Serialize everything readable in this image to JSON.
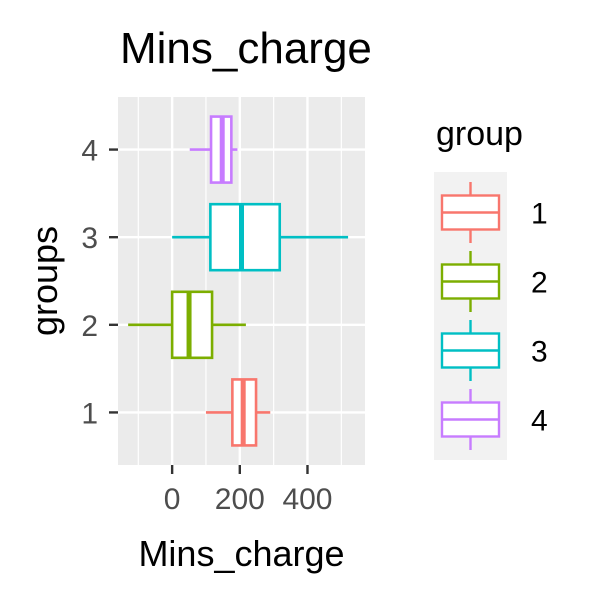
{
  "chart_data": {
    "type": "boxplot",
    "orientation": "horizontal",
    "title": "Mins_charge",
    "xlabel": "Mins_charge",
    "ylabel": "groups",
    "xlim": [
      -160,
      570
    ],
    "x_ticks": [
      0,
      200,
      400
    ],
    "x_tick_labels": [
      "0",
      "200",
      "400"
    ],
    "categories": [
      "1",
      "2",
      "3",
      "4"
    ],
    "series": [
      {
        "name": "1",
        "color": "#F8766D",
        "stats": {
          "min": 100,
          "q1": 178,
          "median": 210,
          "q3": 248,
          "max": 290
        }
      },
      {
        "name": "2",
        "color": "#7CAE00",
        "stats": {
          "min": -130,
          "q1": 0,
          "median": 50,
          "q3": 118,
          "max": 218
        }
      },
      {
        "name": "3",
        "color": "#00BFC4",
        "stats": {
          "min": 0,
          "q1": 113,
          "median": 205,
          "q3": 318,
          "max": 520
        }
      },
      {
        "name": "4",
        "color": "#C77CFF",
        "stats": {
          "min": 52,
          "q1": 115,
          "median": 148,
          "q3": 175,
          "max": 193
        }
      }
    ],
    "legend": {
      "title": "group",
      "position": "right",
      "items": [
        "1",
        "2",
        "3",
        "4"
      ]
    },
    "grid": true,
    "panel_background": "#EBEBEB",
    "legend_key_background": "#F2F2F2"
  }
}
